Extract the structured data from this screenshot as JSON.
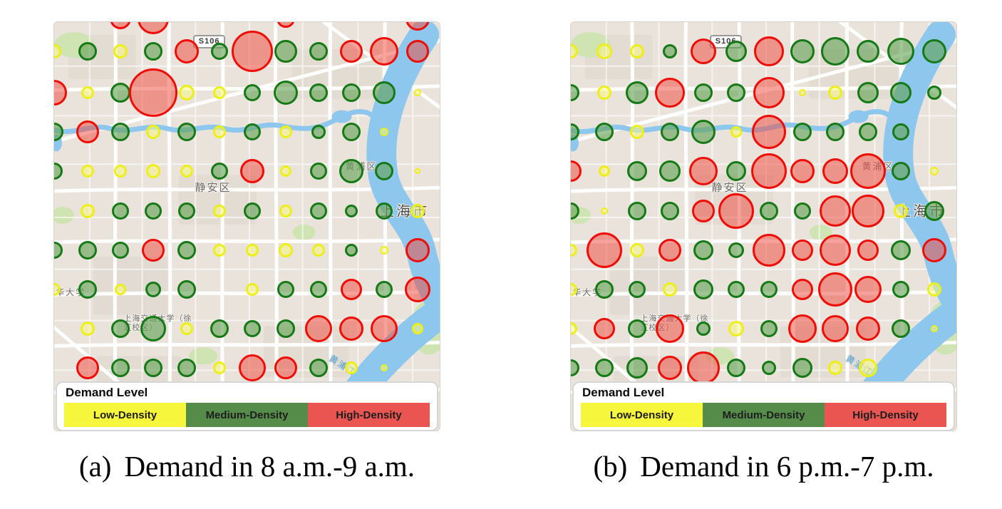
{
  "legend": {
    "title": "Demand Level",
    "items": [
      {
        "label": "Low-Density",
        "color": "#f6f63c"
      },
      {
        "label": "Medium-Density",
        "color": "#568c49"
      },
      {
        "label": "High-Density",
        "color": "#ea5551"
      }
    ]
  },
  "demand_colors": {
    "l": {
      "stroke": "#edef18",
      "fill": "rgba(247,247,130,0.55)"
    },
    "m": {
      "stroke": "#157a15",
      "fill": "rgba(95,160,80,0.6)"
    },
    "h": {
      "stroke": "#ef0d06",
      "fill": "rgba(240,70,58,0.5)"
    }
  },
  "map_labels": {
    "road_shield": "S106",
    "district_jingan": "静安区",
    "district_huangpu": "黄浦区",
    "city": "上海市",
    "university": "华大学",
    "campus": "上海交通大学（徐汇校区）",
    "river": "黄浦江"
  },
  "grid": {
    "cols_pct": [
      0,
      8.6,
      17.1,
      25.7,
      34.3,
      42.8,
      51.4,
      60.0,
      68.5,
      77.1,
      85.6,
      94.2
    ],
    "rows_pct": [
      -0.8,
      7.2,
      17.2,
      26.8,
      36.5,
      46.3,
      55.8,
      65.4,
      75.0,
      84.6
    ]
  },
  "panels": [
    {
      "caption_index": "(a)",
      "caption_text": "Demand in 8 a.m.-9 a.m.",
      "circles": [
        [
          2,
          0,
          "h",
          15
        ],
        [
          3,
          0,
          "h",
          22
        ],
        [
          7,
          0,
          "h",
          13
        ],
        [
          11,
          0,
          "h",
          17
        ],
        [
          0,
          1,
          "l",
          10
        ],
        [
          1,
          1,
          "m",
          13
        ],
        [
          2,
          1,
          "l",
          10
        ],
        [
          3,
          1,
          "m",
          13
        ],
        [
          4,
          1,
          "h",
          17
        ],
        [
          5,
          1,
          "m",
          12
        ],
        [
          6,
          1,
          "h",
          29
        ],
        [
          7,
          1,
          "m",
          16
        ],
        [
          8,
          1,
          "m",
          13
        ],
        [
          9,
          1,
          "h",
          16
        ],
        [
          10,
          1,
          "h",
          20
        ],
        [
          11,
          1,
          "h",
          16
        ],
        [
          0,
          2,
          "h",
          18
        ],
        [
          1,
          2,
          "l",
          9
        ],
        [
          2,
          2,
          "m",
          14
        ],
        [
          3,
          2,
          "h",
          34
        ],
        [
          4,
          2,
          "l",
          11
        ],
        [
          5,
          2,
          "l",
          9
        ],
        [
          6,
          2,
          "m",
          12
        ],
        [
          7,
          2,
          "m",
          17
        ],
        [
          8,
          2,
          "m",
          13
        ],
        [
          9,
          2,
          "m",
          13
        ],
        [
          10,
          2,
          "m",
          16
        ],
        [
          11,
          2,
          "l",
          5
        ],
        [
          0,
          3,
          "m",
          13
        ],
        [
          1,
          3,
          "h",
          16
        ],
        [
          2,
          3,
          "m",
          13
        ],
        [
          3,
          3,
          "l",
          10
        ],
        [
          4,
          3,
          "m",
          13
        ],
        [
          5,
          3,
          "l",
          9
        ],
        [
          6,
          3,
          "m",
          12
        ],
        [
          7,
          3,
          "l",
          9
        ],
        [
          8,
          3,
          "m",
          10
        ],
        [
          9,
          3,
          "m",
          13
        ],
        [
          10,
          3,
          "l",
          6
        ],
        [
          0,
          4,
          "m",
          12
        ],
        [
          1,
          4,
          "l",
          9
        ],
        [
          2,
          4,
          "l",
          9
        ],
        [
          3,
          4,
          "l",
          10
        ],
        [
          4,
          4,
          "l",
          9
        ],
        [
          5,
          4,
          "m",
          12
        ],
        [
          6,
          4,
          "h",
          17
        ],
        [
          7,
          4,
          "l",
          8
        ],
        [
          8,
          4,
          "m",
          12
        ],
        [
          9,
          4,
          "m",
          17
        ],
        [
          10,
          4,
          "m",
          13
        ],
        [
          11,
          4,
          "l",
          4
        ],
        [
          1,
          5,
          "l",
          10
        ],
        [
          2,
          5,
          "m",
          12
        ],
        [
          3,
          5,
          "m",
          12
        ],
        [
          4,
          5,
          "m",
          12
        ],
        [
          5,
          5,
          "l",
          9
        ],
        [
          6,
          5,
          "m",
          12
        ],
        [
          7,
          5,
          "l",
          9
        ],
        [
          8,
          5,
          "m",
          12
        ],
        [
          9,
          5,
          "m",
          9
        ],
        [
          10,
          5,
          "m",
          12
        ],
        [
          11,
          5,
          "l",
          10
        ],
        [
          0,
          6,
          "m",
          12
        ],
        [
          1,
          6,
          "m",
          13
        ],
        [
          2,
          6,
          "m",
          12
        ],
        [
          3,
          6,
          "h",
          16
        ],
        [
          4,
          6,
          "m",
          13
        ],
        [
          5,
          6,
          "l",
          9
        ],
        [
          6,
          6,
          "l",
          9
        ],
        [
          7,
          6,
          "l",
          10
        ],
        [
          8,
          6,
          "l",
          9
        ],
        [
          9,
          6,
          "m",
          9
        ],
        [
          10,
          6,
          "l",
          6
        ],
        [
          11,
          6,
          "h",
          17
        ],
        [
          0,
          7,
          "l",
          9
        ],
        [
          1,
          7,
          "m",
          13
        ],
        [
          2,
          7,
          "l",
          8
        ],
        [
          3,
          7,
          "m",
          11
        ],
        [
          4,
          7,
          "m",
          13
        ],
        [
          6,
          7,
          "l",
          9
        ],
        [
          7,
          7,
          "m",
          12
        ],
        [
          8,
          7,
          "m",
          12
        ],
        [
          9,
          7,
          "h",
          15
        ],
        [
          10,
          7,
          "m",
          12
        ],
        [
          11,
          7,
          "h",
          18
        ],
        [
          1,
          8,
          "l",
          10
        ],
        [
          2,
          8,
          "m",
          13
        ],
        [
          3,
          8,
          "m",
          18
        ],
        [
          4,
          8,
          "l",
          9
        ],
        [
          5,
          8,
          "m",
          13
        ],
        [
          6,
          8,
          "m",
          12
        ],
        [
          7,
          8,
          "m",
          13
        ],
        [
          8,
          8,
          "h",
          19
        ],
        [
          9,
          8,
          "h",
          17
        ],
        [
          10,
          8,
          "h",
          19
        ],
        [
          11,
          8,
          "l",
          8
        ],
        [
          1,
          9,
          "h",
          16
        ],
        [
          2,
          9,
          "m",
          13
        ],
        [
          3,
          9,
          "m",
          13
        ],
        [
          4,
          9,
          "m",
          13
        ],
        [
          5,
          9,
          "l",
          9
        ],
        [
          6,
          9,
          "h",
          19
        ],
        [
          7,
          9,
          "h",
          16
        ],
        [
          8,
          9,
          "m",
          13
        ],
        [
          9,
          9,
          "l",
          9
        ],
        [
          10,
          9,
          "l",
          5
        ]
      ]
    },
    {
      "caption_index": "(b)",
      "caption_text": "Demand in 6 p.m.-7 p.m.",
      "circles": [
        [
          0,
          1,
          "l",
          10
        ],
        [
          1,
          1,
          "l",
          11
        ],
        [
          2,
          1,
          "l",
          10
        ],
        [
          3,
          1,
          "m",
          10
        ],
        [
          4,
          1,
          "h",
          18
        ],
        [
          5,
          1,
          "m",
          15
        ],
        [
          6,
          1,
          "h",
          21
        ],
        [
          7,
          1,
          "m",
          17
        ],
        [
          8,
          1,
          "m",
          20
        ],
        [
          9,
          1,
          "m",
          16
        ],
        [
          10,
          1,
          "m",
          19
        ],
        [
          11,
          1,
          "m",
          17
        ],
        [
          0,
          2,
          "m",
          12
        ],
        [
          1,
          2,
          "l",
          10
        ],
        [
          2,
          2,
          "m",
          16
        ],
        [
          3,
          2,
          "h",
          21
        ],
        [
          4,
          2,
          "m",
          13
        ],
        [
          5,
          2,
          "m",
          13
        ],
        [
          6,
          2,
          "h",
          22
        ],
        [
          7,
          2,
          "l",
          5
        ],
        [
          8,
          2,
          "l",
          10
        ],
        [
          9,
          2,
          "m",
          15
        ],
        [
          10,
          2,
          "m",
          15
        ],
        [
          11,
          2,
          "m",
          10
        ],
        [
          0,
          3,
          "m",
          12
        ],
        [
          1,
          3,
          "m",
          13
        ],
        [
          2,
          3,
          "l",
          10
        ],
        [
          3,
          3,
          "m",
          13
        ],
        [
          4,
          3,
          "m",
          17
        ],
        [
          5,
          3,
          "l",
          8
        ],
        [
          6,
          3,
          "h",
          24
        ],
        [
          7,
          3,
          "m",
          13
        ],
        [
          8,
          3,
          "m",
          13
        ],
        [
          9,
          3,
          "m",
          13
        ],
        [
          10,
          3,
          "m",
          12
        ],
        [
          0,
          4,
          "h",
          15
        ],
        [
          1,
          4,
          "l",
          8
        ],
        [
          2,
          4,
          "m",
          14
        ],
        [
          3,
          4,
          "m",
          15
        ],
        [
          4,
          4,
          "h",
          20
        ],
        [
          5,
          4,
          "m",
          14
        ],
        [
          6,
          4,
          "h",
          25
        ],
        [
          7,
          4,
          "h",
          17
        ],
        [
          8,
          4,
          "h",
          18
        ],
        [
          9,
          4,
          "h",
          25
        ],
        [
          10,
          4,
          "m",
          13
        ],
        [
          11,
          4,
          "l",
          6
        ],
        [
          0,
          5,
          "m",
          12
        ],
        [
          1,
          5,
          "l",
          5
        ],
        [
          2,
          5,
          "m",
          13
        ],
        [
          3,
          5,
          "m",
          13
        ],
        [
          4,
          5,
          "h",
          16
        ],
        [
          5,
          5,
          "h",
          25
        ],
        [
          6,
          5,
          "m",
          13
        ],
        [
          7,
          5,
          "m",
          12
        ],
        [
          8,
          5,
          "h",
          22
        ],
        [
          9,
          5,
          "h",
          23
        ],
        [
          10,
          5,
          "l",
          10
        ],
        [
          11,
          5,
          "m",
          14
        ],
        [
          0,
          6,
          "l",
          9
        ],
        [
          1,
          6,
          "h",
          25
        ],
        [
          2,
          6,
          "l",
          10
        ],
        [
          3,
          6,
          "h",
          16
        ],
        [
          4,
          6,
          "m",
          14
        ],
        [
          5,
          6,
          "m",
          11
        ],
        [
          6,
          6,
          "h",
          23
        ],
        [
          7,
          6,
          "h",
          15
        ],
        [
          8,
          6,
          "h",
          22
        ],
        [
          9,
          6,
          "h",
          15
        ],
        [
          10,
          6,
          "m",
          14
        ],
        [
          11,
          6,
          "h",
          17
        ],
        [
          0,
          7,
          "l",
          9
        ],
        [
          1,
          7,
          "m",
          13
        ],
        [
          2,
          7,
          "m",
          12
        ],
        [
          3,
          7,
          "l",
          10
        ],
        [
          4,
          7,
          "m",
          14
        ],
        [
          5,
          7,
          "m",
          12
        ],
        [
          6,
          7,
          "m",
          12
        ],
        [
          7,
          7,
          "h",
          15
        ],
        [
          8,
          7,
          "h",
          24
        ],
        [
          9,
          7,
          "h",
          19
        ],
        [
          10,
          7,
          "m",
          12
        ],
        [
          11,
          7,
          "l",
          10
        ],
        [
          0,
          8,
          "l",
          9
        ],
        [
          1,
          8,
          "h",
          15
        ],
        [
          2,
          8,
          "m",
          13
        ],
        [
          3,
          8,
          "h",
          20
        ],
        [
          4,
          8,
          "m",
          10
        ],
        [
          5,
          8,
          "l",
          11
        ],
        [
          6,
          8,
          "m",
          12
        ],
        [
          7,
          8,
          "h",
          20
        ],
        [
          8,
          8,
          "h",
          19
        ],
        [
          9,
          8,
          "h",
          17
        ],
        [
          10,
          8,
          "m",
          13
        ],
        [
          11,
          8,
          "l",
          5
        ],
        [
          0,
          9,
          "m",
          12
        ],
        [
          1,
          9,
          "m",
          13
        ],
        [
          2,
          9,
          "m",
          15
        ],
        [
          3,
          9,
          "h",
          17
        ],
        [
          4,
          9,
          "h",
          23
        ],
        [
          5,
          9,
          "m",
          13
        ],
        [
          6,
          9,
          "m",
          10
        ],
        [
          7,
          9,
          "m",
          14
        ],
        [
          8,
          9,
          "l",
          10
        ],
        [
          9,
          9,
          "l",
          13
        ]
      ]
    }
  ]
}
